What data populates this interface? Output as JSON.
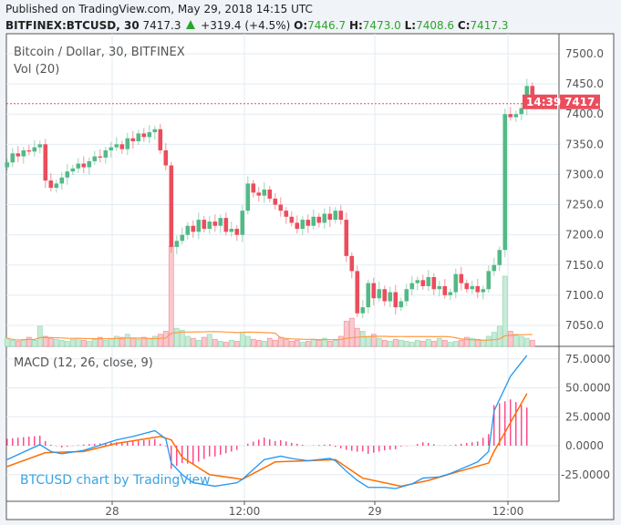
{
  "header": {
    "published": "Published on TradingView.com, May 29, 2018 14:15 UTC",
    "symbol": "BITFINEX:BTCUSD, 30",
    "last": "7417.3",
    "change": "+319.4 (+4.5%)",
    "o_label": "O:",
    "o": "7446.7",
    "h_label": "H:",
    "h": "7473.0",
    "l_label": "L:",
    "l": "7408.6",
    "c_label": "C:",
    "c": "7417.3"
  },
  "legend": {
    "title": "Bitcoin / Dollar, 30, BITFINEX",
    "volume": "Vol (20)",
    "macd": "MACD (12, 26, close, 9)"
  },
  "watermark": "BTCUSD chart by TradingView",
  "colors": {
    "up": "#53b987",
    "down": "#eb4d5c",
    "macd": "#2196f3",
    "signal": "#ff6d00",
    "histogram": "#ff1f6e",
    "price_tag": "#eb4d5c"
  },
  "chart_data": [
    {
      "type": "candlestick",
      "ylim": [
        7020,
        7520
      ],
      "y_ticks": [
        "7500.0",
        "7450.0",
        "7400.0",
        "7350.0",
        "7300.0",
        "7250.0",
        "7200.0",
        "7150.0",
        "7100.0",
        "7050.0"
      ],
      "x_ticks": [
        "28",
        "12:00",
        "29",
        "12:00"
      ],
      "current_price": "7417.3",
      "countdown": "14:39",
      "close": [
        7320,
        7335,
        7330,
        7340,
        7338,
        7345,
        7350,
        7290,
        7278,
        7285,
        7295,
        7305,
        7310,
        7318,
        7312,
        7322,
        7330,
        7328,
        7340,
        7345,
        7350,
        7342,
        7360,
        7355,
        7368,
        7362,
        7370,
        7375,
        7340,
        7315,
        7180,
        7190,
        7200,
        7215,
        7205,
        7225,
        7210,
        7222,
        7215,
        7228,
        7205,
        7210,
        7200,
        7240,
        7285,
        7270,
        7265,
        7275,
        7260,
        7250,
        7240,
        7230,
        7220,
        7210,
        7225,
        7215,
        7230,
        7220,
        7235,
        7225,
        7240,
        7225,
        7165,
        7140,
        7070,
        7080,
        7120,
        7095,
        7110,
        7090,
        7105,
        7080,
        7090,
        7110,
        7120,
        7125,
        7115,
        7130,
        7110,
        7115,
        7100,
        7105,
        7135,
        7120,
        7110,
        7115,
        7105,
        7110,
        7140,
        7150,
        7175,
        7400,
        7395,
        7400,
        7410,
        7446.7,
        7417.3
      ],
      "volume_relative": [
        8,
        6,
        5,
        7,
        9,
        6,
        20,
        10,
        8,
        7,
        6,
        5,
        7,
        8,
        6,
        5,
        7,
        9,
        6,
        8,
        10,
        9,
        12,
        8,
        7,
        9,
        8,
        10,
        12,
        15,
        100,
        18,
        16,
        10,
        8,
        6,
        9,
        12,
        7,
        5,
        4,
        6,
        5,
        14,
        10,
        7,
        6,
        5,
        8,
        6,
        9,
        7,
        5,
        6,
        4,
        5,
        7,
        6,
        8,
        5,
        6,
        10,
        25,
        28,
        18,
        15,
        10,
        12,
        8,
        6,
        5,
        7,
        6,
        5,
        4,
        6,
        5,
        7,
        5,
        8,
        6,
        4,
        5,
        6,
        9,
        8,
        7,
        6,
        10,
        14,
        20,
        70,
        15,
        12,
        10,
        8,
        6
      ]
    },
    {
      "type": "line",
      "title": "MACD (12, 26, close, 9)",
      "ylim": [
        -45,
        85
      ],
      "y_ticks": [
        "75.0000",
        "50.0000",
        "25.0000",
        "0.0000",
        "-25.0000"
      ],
      "macd": [
        [
          0,
          -12
        ],
        [
          6,
          1
        ],
        [
          8,
          -5
        ],
        [
          10,
          -7
        ],
        [
          14,
          -4
        ],
        [
          20,
          5
        ],
        [
          23,
          8
        ],
        [
          27,
          13
        ],
        [
          29,
          6
        ],
        [
          30,
          -15
        ],
        [
          32,
          -25
        ],
        [
          34,
          -32
        ],
        [
          38,
          -35
        ],
        [
          42,
          -32
        ],
        [
          43,
          -29
        ],
        [
          47,
          -12
        ],
        [
          50,
          -9
        ],
        [
          52,
          -11
        ],
        [
          55,
          -13
        ],
        [
          59,
          -11
        ],
        [
          60,
          -13
        ],
        [
          62,
          -22
        ],
        [
          64,
          -30
        ],
        [
          66,
          -36
        ],
        [
          69,
          -36
        ],
        [
          71,
          -37
        ],
        [
          74,
          -33
        ],
        [
          76,
          -28
        ],
        [
          79,
          -27
        ],
        [
          81,
          -24
        ],
        [
          84,
          -18
        ],
        [
          86,
          -14
        ],
        [
          88,
          -5
        ],
        [
          89,
          30
        ],
        [
          92,
          60
        ],
        [
          95,
          78
        ]
      ],
      "signal": [
        [
          0,
          -18
        ],
        [
          7,
          -6
        ],
        [
          14,
          -5
        ],
        [
          20,
          2
        ],
        [
          28,
          8
        ],
        [
          30,
          5
        ],
        [
          32,
          -10
        ],
        [
          37,
          -25
        ],
        [
          43,
          -29
        ],
        [
          49,
          -14
        ],
        [
          55,
          -13
        ],
        [
          60,
          -12
        ],
        [
          65,
          -28
        ],
        [
          72,
          -35
        ],
        [
          77,
          -30
        ],
        [
          82,
          -23
        ],
        [
          88,
          -15
        ],
        [
          89,
          -5
        ],
        [
          92,
          20
        ],
        [
          95,
          45
        ]
      ]
    }
  ]
}
